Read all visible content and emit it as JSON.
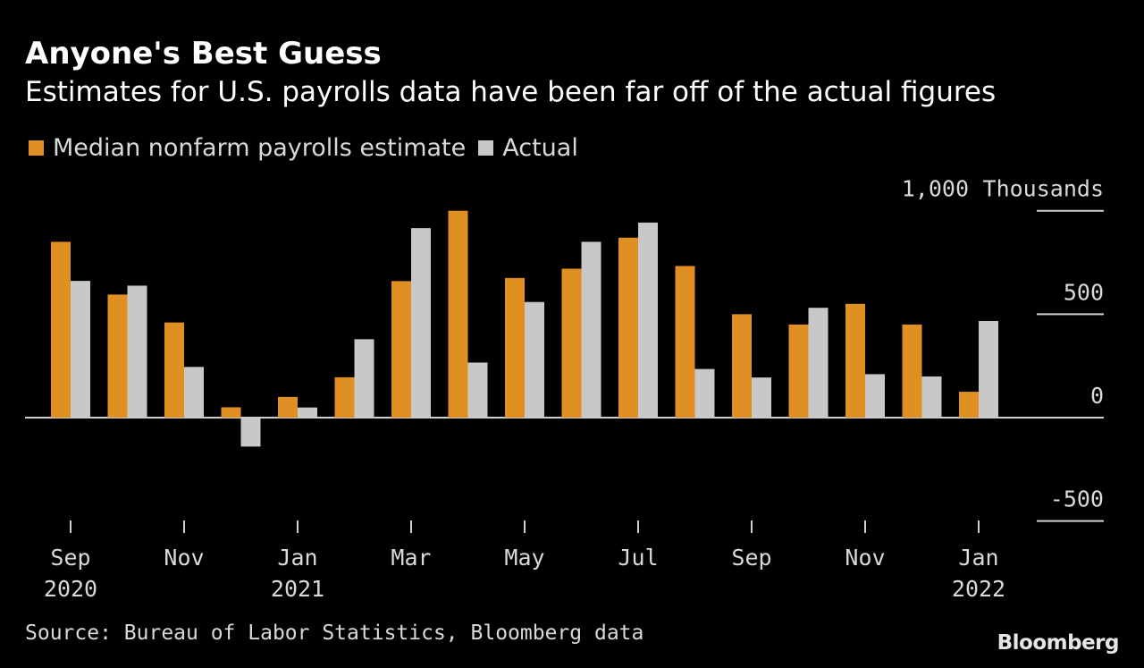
{
  "title": "Anyone's Best Guess",
  "subtitle": "Estimates for U.S. payrolls data have been far off of the actual figures",
  "source": "Source: Bureau of Labor Statistics, Bloomberg data",
  "brand": "Bloomberg",
  "colors": {
    "estimate": "#e08f23",
    "actual": "#c8c8c8",
    "background": "#000000"
  },
  "chart_data": {
    "type": "bar",
    "unit_label": "Thousands",
    "categories": [
      "Sep 2020",
      "Oct 2020",
      "Nov 2020",
      "Dec 2020",
      "Jan 2021",
      "Feb 2021",
      "Mar 2021",
      "Apr 2021",
      "May 2021",
      "Jun 2021",
      "Jul 2021",
      "Aug 2021",
      "Sep 2021",
      "Oct 2021",
      "Nov 2021",
      "Dec 2021",
      "Jan 2022"
    ],
    "series": [
      {
        "name": "Median nonfarm payrolls estimate",
        "values": [
          850,
          595,
          460,
          50,
          100,
          195,
          660,
          1000,
          675,
          720,
          870,
          733,
          500,
          450,
          550,
          450,
          125
        ]
      },
      {
        "name": "Actual",
        "values": [
          661,
          638,
          245,
          -140,
          49,
          379,
          916,
          266,
          559,
          850,
          943,
          235,
          194,
          531,
          210,
          199,
          467
        ]
      }
    ],
    "ylim": [
      -500,
      1000
    ],
    "yticks": [
      {
        "value": 1000,
        "label": "1,000"
      },
      {
        "value": 500,
        "label": "500"
      },
      {
        "value": 0,
        "label": "0"
      },
      {
        "value": -500,
        "label": "-500"
      }
    ],
    "xticks": [
      {
        "index": 0,
        "month": "Sep",
        "year": "2020"
      },
      {
        "index": 2,
        "month": "Nov",
        "year": ""
      },
      {
        "index": 4,
        "month": "Jan",
        "year": "2021"
      },
      {
        "index": 6,
        "month": "Mar",
        "year": ""
      },
      {
        "index": 8,
        "month": "May",
        "year": ""
      },
      {
        "index": 10,
        "month": "Jul",
        "year": ""
      },
      {
        "index": 12,
        "month": "Sep",
        "year": ""
      },
      {
        "index": 14,
        "month": "Nov",
        "year": ""
      },
      {
        "index": 16,
        "month": "Jan",
        "year": "2022"
      }
    ],
    "grid": true,
    "legend_position": "top-left"
  }
}
